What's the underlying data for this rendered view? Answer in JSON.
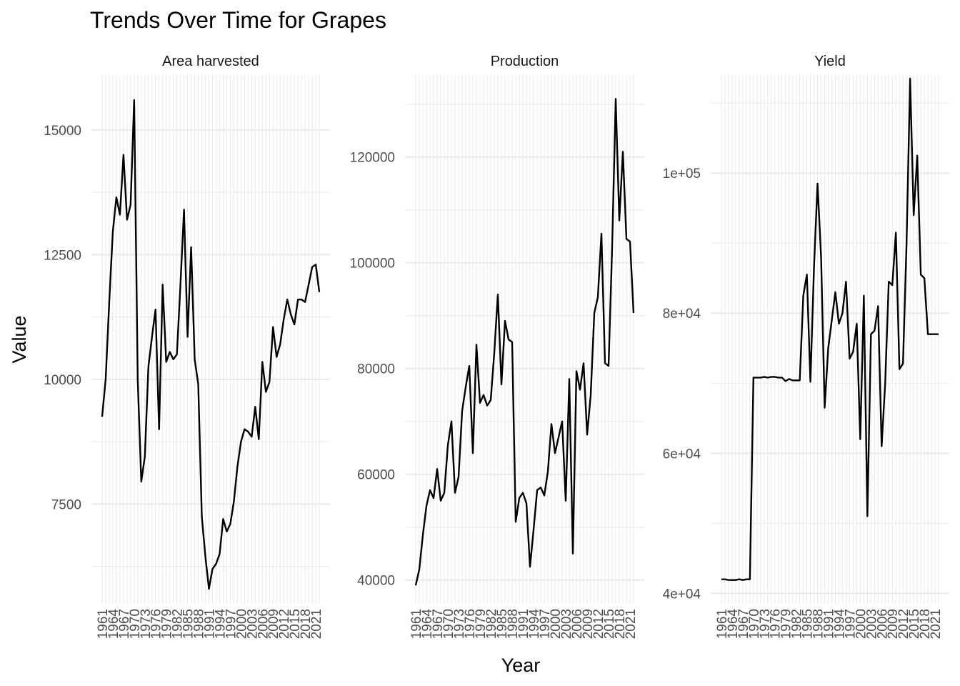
{
  "chart_data": {
    "type": "line",
    "title": "Trends Over Time for Grapes",
    "xlabel": "Year",
    "ylabel": "Value",
    "grid": true,
    "legend": "none",
    "facets": [
      {
        "name": "Area harvested",
        "yticks": [
          7500,
          10000,
          12500,
          15000
        ],
        "ytick_labels": [
          "7500",
          "10000",
          "12500",
          "15000"
        ],
        "ylim": [
          5500,
          16100
        ],
        "x": [
          1961,
          1962,
          1963,
          1964,
          1965,
          1966,
          1967,
          1968,
          1969,
          1970,
          1971,
          1972,
          1973,
          1974,
          1975,
          1976,
          1977,
          1978,
          1979,
          1980,
          1981,
          1982,
          1983,
          1984,
          1985,
          1986,
          1987,
          1988,
          1989,
          1990,
          1991,
          1992,
          1993,
          1994,
          1995,
          1996,
          1997,
          1998,
          1999,
          2000,
          2001,
          2002,
          2003,
          2004,
          2005,
          2006,
          2007,
          2008,
          2009,
          2010,
          2011,
          2012,
          2013,
          2014,
          2015,
          2016,
          2017,
          2018,
          2019,
          2020,
          2021,
          2022
        ],
        "values": [
          9250,
          10000,
          11550,
          12950,
          13650,
          13300,
          14500,
          13200,
          13500,
          15600,
          10000,
          7950,
          8450,
          10250,
          10850,
          11400,
          9000,
          11900,
          10350,
          10550,
          10400,
          10500,
          11900,
          13400,
          10850,
          12650,
          10400,
          9900,
          7250,
          6450,
          5800,
          6200,
          6300,
          6500,
          7200,
          6950,
          7100,
          7550,
          8250,
          8750,
          9000,
          8950,
          8850,
          9450,
          8800,
          10350,
          9750,
          9950,
          11050,
          10450,
          10700,
          11200,
          11600,
          11300,
          11100,
          11600,
          11600,
          11550,
          11900,
          12250,
          12300,
          11750
        ]
      },
      {
        "name": "Production",
        "yticks": [
          40000,
          60000,
          80000,
          100000,
          120000
        ],
        "ytick_labels": [
          "40000",
          "60000",
          "80000",
          "100000",
          "120000"
        ],
        "ylim": [
          35500,
          135500
        ],
        "x": [
          1961,
          1962,
          1963,
          1964,
          1965,
          1966,
          1967,
          1968,
          1969,
          1970,
          1971,
          1972,
          1973,
          1974,
          1975,
          1976,
          1977,
          1978,
          1979,
          1980,
          1981,
          1982,
          1983,
          1984,
          1985,
          1986,
          1987,
          1988,
          1989,
          1990,
          1991,
          1992,
          1993,
          1994,
          1995,
          1996,
          1997,
          1998,
          1999,
          2000,
          2001,
          2002,
          2003,
          2004,
          2005,
          2006,
          2007,
          2008,
          2009,
          2010,
          2011,
          2012,
          2013,
          2014,
          2015,
          2016,
          2017,
          2018,
          2019,
          2020,
          2021,
          2022
        ],
        "values": [
          39000,
          42000,
          48500,
          54000,
          57000,
          55500,
          61000,
          55000,
          56500,
          65500,
          70000,
          56500,
          59500,
          72000,
          76500,
          80500,
          64000,
          84500,
          73500,
          75000,
          73000,
          74000,
          83000,
          94000,
          77000,
          89000,
          85500,
          85000,
          51000,
          55500,
          56500,
          54500,
          42500,
          49500,
          57000,
          57500,
          56000,
          60500,
          69500,
          64000,
          67000,
          70000,
          55000,
          78000,
          45000,
          79500,
          76000,
          81000,
          67500,
          75000,
          90500,
          93500,
          105500,
          81000,
          80500,
          103000,
          131000,
          108000,
          121000,
          104500,
          104000,
          90500
        ]
      },
      {
        "name": "Yield",
        "yticks": [
          40000,
          60000,
          80000,
          100000
        ],
        "ytick_labels": [
          "4e+04",
          "6e+04",
          "8e+04",
          "1e+05"
        ],
        "ylim": [
          38500,
          114000
        ],
        "x": [
          1961,
          1962,
          1963,
          1964,
          1965,
          1966,
          1967,
          1968,
          1969,
          1970,
          1971,
          1972,
          1973,
          1974,
          1975,
          1976,
          1977,
          1978,
          1979,
          1980,
          1981,
          1982,
          1983,
          1984,
          1985,
          1986,
          1987,
          1988,
          1989,
          1990,
          1991,
          1992,
          1993,
          1994,
          1995,
          1996,
          1997,
          1998,
          1999,
          2000,
          2001,
          2002,
          2003,
          2004,
          2005,
          2006,
          2007,
          2008,
          2009,
          2010,
          2011,
          2012,
          2013,
          2014,
          2015,
          2016,
          2017,
          2018,
          2019,
          2020,
          2021,
          2022
        ],
        "values": [
          42000,
          42000,
          41900,
          41900,
          41900,
          42000,
          41900,
          42000,
          42000,
          70800,
          70800,
          70800,
          70900,
          70800,
          70900,
          70900,
          70800,
          70800,
          70300,
          70600,
          70400,
          70400,
          70400,
          82500,
          85500,
          70200,
          86500,
          98500,
          88000,
          66500,
          75000,
          79000,
          83000,
          78500,
          80000,
          84500,
          73500,
          74500,
          78500,
          62000,
          82500,
          51000,
          77000,
          77500,
          81000,
          61000,
          70000,
          84500,
          84000,
          91500,
          72000,
          72800,
          90000,
          113500,
          94000,
          102500,
          85500,
          85000,
          77000,
          77000,
          77000,
          77000
        ]
      }
    ],
    "xtick_labels": [
      "1961",
      "1964",
      "1967",
      "1970",
      "1973",
      "1976",
      "1979",
      "1982",
      "1985",
      "1988",
      "1991",
      "1994",
      "1997",
      "2000",
      "2003",
      "2006",
      "2009",
      "2012",
      "2015",
      "2018",
      "2021"
    ]
  }
}
